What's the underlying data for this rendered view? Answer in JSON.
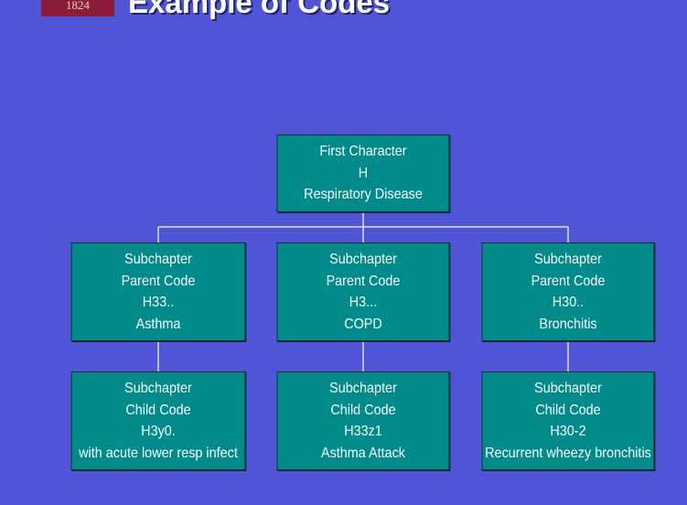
{
  "logo": {
    "text": "1824"
  },
  "title": "Example of Codes",
  "root": {
    "lines": [
      "First Character",
      "H",
      "Respiratory Disease"
    ]
  },
  "parents": [
    {
      "lines": [
        "Subchapter",
        "Parent Code",
        "H33..",
        "Asthma"
      ]
    },
    {
      "lines": [
        "Subchapter",
        "Parent Code",
        "H3...",
        "COPD"
      ]
    },
    {
      "lines": [
        "Subchapter",
        "Parent Code",
        "H30..",
        "Bronchitis"
      ]
    }
  ],
  "children": [
    {
      "lines": [
        "Subchapter",
        "Child Code",
        "H3y0.",
        "with acute lower resp infect"
      ]
    },
    {
      "lines": [
        "Subchapter",
        "Child Code",
        "H33z1",
        "Asthma Attack"
      ]
    },
    {
      "lines": [
        "Subchapter",
        "Child Code",
        "H30-2",
        "Recurrent wheezy bronchitis"
      ]
    }
  ],
  "colors": {
    "background": "#4f55d6",
    "box": "#008b8b",
    "connector": "#ffffff",
    "logo": "#8a1c3a"
  }
}
